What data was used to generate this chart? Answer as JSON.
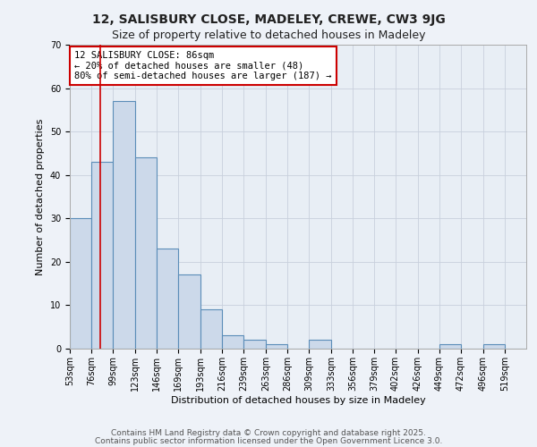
{
  "title1": "12, SALISBURY CLOSE, MADELEY, CREWE, CW3 9JG",
  "title2": "Size of property relative to detached houses in Madeley",
  "xlabel": "Distribution of detached houses by size in Madeley",
  "ylabel": "Number of detached properties",
  "bin_labels": [
    "53sqm",
    "76sqm",
    "99sqm",
    "123sqm",
    "146sqm",
    "169sqm",
    "193sqm",
    "216sqm",
    "239sqm",
    "263sqm",
    "286sqm",
    "309sqm",
    "333sqm",
    "356sqm",
    "379sqm",
    "402sqm",
    "426sqm",
    "449sqm",
    "472sqm",
    "496sqm",
    "519sqm"
  ],
  "bin_edges": [
    53,
    76,
    99,
    123,
    146,
    169,
    193,
    216,
    239,
    263,
    286,
    309,
    333,
    356,
    379,
    402,
    426,
    449,
    472,
    496,
    519,
    542
  ],
  "bar_heights": [
    30,
    43,
    57,
    44,
    23,
    17,
    9,
    3,
    2,
    1,
    0,
    2,
    0,
    0,
    0,
    0,
    0,
    1,
    0,
    1,
    0
  ],
  "bar_color": "#ccd9ea",
  "bar_edgecolor": "#5b8db8",
  "bar_linewidth": 0.8,
  "vline_x": 86,
  "vline_color": "#cc0000",
  "annotation_text": "12 SALISBURY CLOSE: 86sqm\n← 20% of detached houses are smaller (48)\n80% of semi-detached houses are larger (187) →",
  "annotation_box_color": "#ffffff",
  "annotation_box_edgecolor": "#cc0000",
  "ylim": [
    0,
    70
  ],
  "yticks": [
    0,
    10,
    20,
    30,
    40,
    50,
    60,
    70
  ],
  "grid_color": "#c8d0dc",
  "bg_color": "#e8eef5",
  "footer1": "Contains HM Land Registry data © Crown copyright and database right 2025.",
  "footer2": "Contains public sector information licensed under the Open Government Licence 3.0.",
  "title_fontsize": 10,
  "subtitle_fontsize": 9,
  "ylabel_fontsize": 8,
  "xlabel_fontsize": 8,
  "tick_fontsize": 7,
  "annotation_fontsize": 7.5,
  "footer_fontsize": 6.5
}
